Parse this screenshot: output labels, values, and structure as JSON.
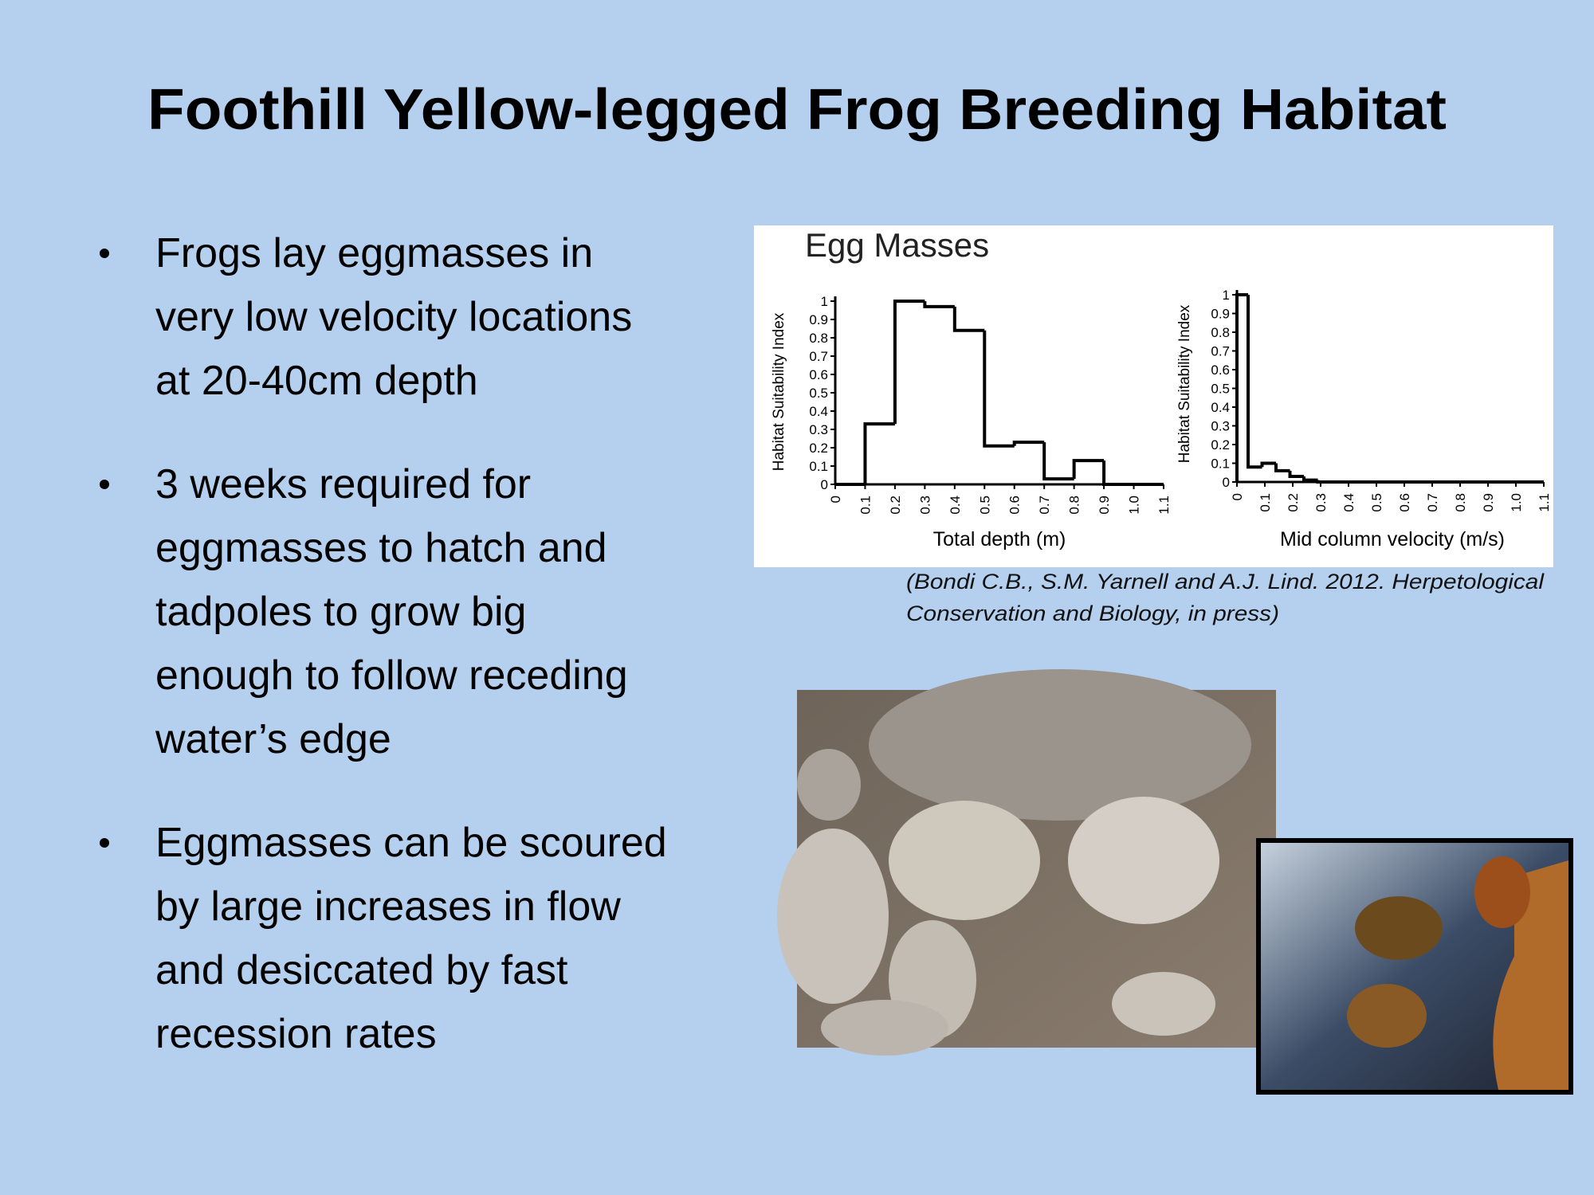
{
  "title": "Foothill Yellow-legged Frog Breeding Habitat",
  "bullets": [
    [
      "Frogs lay eggmasses in",
      "very low velocity locations",
      "at 20-40cm depth"
    ],
    [
      "3 weeks required for",
      "eggmasses to hatch and",
      "tadpoles to grow big",
      "enough to follow receding",
      "water’s edge"
    ],
    [
      "Eggmasses can be scoured",
      "by large increases in flow",
      "and desiccated by fast",
      "recession rates"
    ]
  ],
  "figure_title": "Egg Masses",
  "chart_data": [
    {
      "type": "histogram",
      "xlabel": "Total depth (m)",
      "ylabel": "Habitat Suitability Index",
      "color": "#000000",
      "bins": [
        0,
        0.1,
        0.2,
        0.3,
        0.4,
        0.5,
        0.6,
        0.7,
        0.8,
        0.9,
        1.0,
        1.1
      ],
      "values": [
        0,
        0.33,
        1.0,
        0.97,
        0.84,
        0.21,
        0.23,
        0.03,
        0.13,
        0,
        0
      ],
      "xlim": [
        0,
        1.1
      ],
      "ylim": [
        0,
        1
      ],
      "xticks": [
        0,
        0.1,
        0.2,
        0.3,
        0.4,
        0.5,
        0.6,
        0.7,
        0.8,
        0.9,
        {
          "value": 1,
          "label": "1.0"
        },
        1.1
      ],
      "yticks": [
        0,
        0.1,
        0.2,
        0.3,
        0.4,
        0.5,
        0.6,
        0.7,
        0.8,
        0.9,
        1
      ]
    },
    {
      "type": "histogram",
      "xlabel": "Mid column velocity (m/s)",
      "ylabel": "Habitat Suitability Index",
      "color": "#000000",
      "bins": [
        0,
        0.04,
        0.09,
        0.14,
        0.19,
        0.24,
        0.29,
        1.1
      ],
      "values": [
        1.0,
        0.08,
        0.1,
        0.06,
        0.03,
        0.01,
        0
      ],
      "xlim": [
        0,
        1.1
      ],
      "ylim": [
        0,
        1
      ],
      "xticks": [
        0,
        0.1,
        0.2,
        0.3,
        0.4,
        0.5,
        0.6,
        0.7,
        0.8,
        0.9,
        {
          "value": 1,
          "label": "1.0"
        },
        1.1
      ],
      "yticks": [
        0,
        0.1,
        0.2,
        0.3,
        0.4,
        0.5,
        0.6,
        0.7,
        0.8,
        0.9,
        1
      ]
    }
  ],
  "citation": [
    "(Bondi  C.B., S.M. Yarnell and A.J. Lind. 2012. Herpetological",
    "Conservation and Biology, in press)"
  ]
}
